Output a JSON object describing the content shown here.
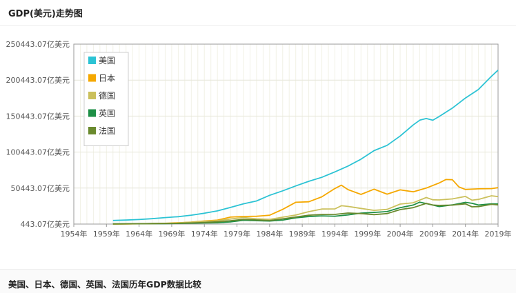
{
  "page": {
    "title": "GDP(美元)走势图",
    "caption": "美国、日本、德国、英国、法国历年GDP数据比较"
  },
  "chart_data": {
    "type": "line",
    "title": "GDP(美元)走势图",
    "xlabel": "",
    "ylabel": "亿美元",
    "xlim": [
      1954,
      2019
    ],
    "ylim": [
      443.07,
      250443.07
    ],
    "x_ticks": [
      1954,
      1959,
      1964,
      1969,
      1974,
      1979,
      1984,
      1989,
      1994,
      1999,
      2004,
      2009,
      2014,
      2019
    ],
    "x_tick_labels": [
      "1954年",
      "1959年",
      "1964年",
      "1969年",
      "1974年",
      "1979年",
      "1984年",
      "1989年",
      "1994年",
      "1999年",
      "2004年",
      "2009年",
      "2014年",
      "2019年"
    ],
    "y_ticks": [
      443.07,
      50443.07,
      100443.07,
      150443.07,
      200443.07,
      250443.07
    ],
    "y_tick_labels": [
      "443.07亿美元",
      "50443.07亿美元",
      "100443.07亿美元",
      "150443.07亿美元",
      "200443.07亿美元",
      "250443.07亿美元"
    ],
    "grid": true,
    "legend_position": "top-left",
    "series": [
      {
        "name": "美国",
        "color": "#2cc3d4",
        "x": [
          1960,
          1962,
          1964,
          1966,
          1968,
          1970,
          1972,
          1974,
          1976,
          1978,
          1980,
          1982,
          1984,
          1986,
          1988,
          1990,
          1992,
          1994,
          1996,
          1998,
          2000,
          2002,
          2004,
          2006,
          2007,
          2008,
          2009,
          2010,
          2012,
          2014,
          2016,
          2018,
          2019
        ],
        "y": [
          5400,
          6000,
          6800,
          7900,
          9400,
          10700,
          12800,
          15500,
          18700,
          23500,
          28600,
          32500,
          40400,
          46600,
          53400,
          59800,
          65400,
          73000,
          81000,
          90600,
          102500,
          109800,
          122800,
          138200,
          144800,
          147100,
          144700,
          150000,
          161600,
          175500,
          187500,
          205800,
          214300
        ]
      },
      {
        "name": "日本",
        "color": "#f5a800",
        "x": [
          1960,
          1962,
          1964,
          1966,
          1968,
          1970,
          1972,
          1974,
          1976,
          1978,
          1980,
          1982,
          1984,
          1986,
          1988,
          1990,
          1992,
          1994,
          1995,
          1996,
          1998,
          2000,
          2002,
          2004,
          2006,
          2008,
          2010,
          2011,
          2012,
          2013,
          2014,
          2016,
          2018,
          2019
        ],
        "y": [
          443,
          600,
          820,
          1130,
          1470,
          2120,
          3200,
          4800,
          5900,
          10100,
          11000,
          11300,
          12700,
          20800,
          30700,
          31400,
          38300,
          49900,
          54500,
          48300,
          41600,
          48900,
          42000,
          48000,
          45300,
          50400,
          57600,
          62300,
          62000,
          52100,
          48500,
          49400,
          49700,
          51000
        ]
      },
      {
        "name": "德国",
        "color": "#cbc05c",
        "x": [
          1970,
          1972,
          1974,
          1976,
          1978,
          1980,
          1982,
          1984,
          1986,
          1988,
          1990,
          1992,
          1994,
          1995,
          1996,
          1998,
          2000,
          2002,
          2004,
          2006,
          2008,
          2009,
          2010,
          2012,
          2014,
          2015,
          2016,
          2018,
          2019
        ],
        "y": [
          2100,
          3000,
          4300,
          5000,
          7400,
          9500,
          7700,
          7000,
          10000,
          13000,
          17700,
          21300,
          21500,
          25900,
          25000,
          22200,
          19500,
          20800,
          28200,
          30000,
          37300,
          34200,
          34000,
          35400,
          38900,
          33600,
          34700,
          39700,
          38600
        ]
      },
      {
        "name": "英国",
        "color": "#1e8f46",
        "x": [
          1960,
          1962,
          1964,
          1966,
          1968,
          1970,
          1972,
          1974,
          1976,
          1978,
          1980,
          1982,
          1984,
          1986,
          1988,
          1990,
          1992,
          1994,
          1996,
          1998,
          2000,
          2002,
          2004,
          2006,
          2007,
          2008,
          2010,
          2012,
          2014,
          2015,
          2016,
          2018,
          2019
        ],
        "y": [
          720,
          820,
          940,
          1100,
          1100,
          1300,
          1700,
          2100,
          2300,
          3400,
          5700,
          5100,
          4700,
          6000,
          9100,
          10900,
          11800,
          11400,
          13200,
          15700,
          16600,
          17800,
          23200,
          26900,
          30900,
          28900,
          24800,
          27100,
          30600,
          29300,
          26900,
          28600,
          28300
        ]
      },
      {
        "name": "法国",
        "color": "#6a8a2e",
        "x": [
          1960,
          1962,
          1964,
          1966,
          1968,
          1970,
          1972,
          1974,
          1976,
          1978,
          1980,
          1982,
          1984,
          1986,
          1988,
          1990,
          1992,
          1994,
          1996,
          1998,
          2000,
          2002,
          2004,
          2006,
          2008,
          2009,
          2010,
          2012,
          2014,
          2015,
          2016,
          2018,
          2019
        ],
        "y": [
          630,
          760,
          940,
          1100,
          1300,
          1500,
          2000,
          2700,
          3600,
          5000,
          7000,
          6200,
          5300,
          7700,
          10200,
          12700,
          13800,
          13900,
          15800,
          15000,
          13600,
          15000,
          20600,
          23200,
          29200,
          26900,
          26400,
          26800,
          28500,
          24400,
          24700,
          27800,
          27100
        ]
      }
    ]
  }
}
